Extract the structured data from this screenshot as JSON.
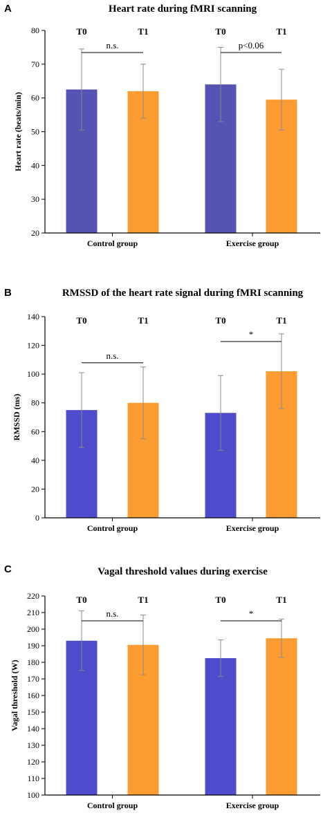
{
  "chart_data": [
    {
      "panel": "A",
      "type": "bar",
      "title": "Heart rate during fMRI scanning",
      "ylabel": "Heart rate (beats/min)",
      "ylim": [
        20,
        80
      ],
      "yticks": [
        20,
        30,
        40,
        50,
        60,
        70,
        80
      ],
      "groups": [
        "Control group",
        "Exercise group"
      ],
      "series": [
        {
          "name": "T0",
          "color": "#5553b4",
          "values": [
            62.5,
            64.0
          ],
          "errors": [
            12.0,
            11.0
          ]
        },
        {
          "name": "T1",
          "color": "#fc9c33",
          "values": [
            62.0,
            59.5
          ],
          "errors": [
            8.0,
            9.0
          ]
        }
      ],
      "significance": [
        {
          "group": 0,
          "label": "n.s."
        },
        {
          "group": 1,
          "label": "p<0.06"
        }
      ]
    },
    {
      "panel": "B",
      "type": "bar",
      "title": "RMSSD of the heart rate signal during fMRI scanning",
      "ylabel": "RMSSD (ms)",
      "ylim": [
        0,
        140
      ],
      "yticks": [
        0,
        20,
        40,
        60,
        80,
        100,
        120,
        140
      ],
      "groups": [
        "Control group",
        "Exercise group"
      ],
      "series": [
        {
          "name": "T0",
          "color": "#4f4ccc",
          "values": [
            75,
            73
          ],
          "errors": [
            26,
            26
          ]
        },
        {
          "name": "T1",
          "color": "#fc9c33",
          "values": [
            80,
            102
          ],
          "errors": [
            25,
            26
          ]
        }
      ],
      "significance": [
        {
          "group": 0,
          "label": "n.s."
        },
        {
          "group": 1,
          "label": "*"
        }
      ]
    },
    {
      "panel": "C",
      "type": "bar",
      "title": "Vagal threshold values during exercise",
      "ylabel": "Vagal threshold (W)",
      "ylim": [
        100,
        220
      ],
      "yticks": [
        100,
        110,
        120,
        130,
        140,
        150,
        160,
        170,
        180,
        190,
        200,
        210,
        220
      ],
      "groups": [
        "Control group",
        "Exercise group"
      ],
      "series": [
        {
          "name": "T0",
          "color": "#4f4ccc",
          "values": [
            193,
            182.5
          ],
          "errors": [
            18,
            11
          ]
        },
        {
          "name": "T1",
          "color": "#fc9c33",
          "values": [
            190.5,
            194.5
          ],
          "errors": [
            18,
            11.5
          ]
        }
      ],
      "significance": [
        {
          "group": 0,
          "label": "n.s."
        },
        {
          "group": 1,
          "label": "*"
        }
      ]
    }
  ]
}
